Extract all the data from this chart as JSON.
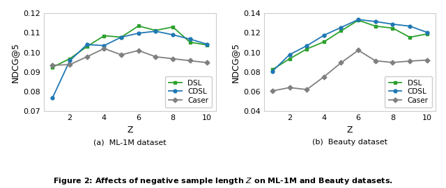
{
  "x": [
    1,
    2,
    3,
    4,
    5,
    6,
    7,
    8,
    9,
    10
  ],
  "ml1m": {
    "DSL": [
      0.0925,
      0.0968,
      0.103,
      0.1085,
      0.1078,
      0.1135,
      0.1112,
      0.113,
      0.1052,
      0.1038
    ],
    "CDSL": [
      0.077,
      0.0958,
      0.104,
      0.1035,
      0.1078,
      0.1098,
      0.1108,
      0.109,
      0.1068,
      0.1042
    ],
    "Caser": [
      0.0935,
      0.0938,
      0.0978,
      0.102,
      0.0988,
      0.101,
      0.0978,
      0.0968,
      0.0958,
      0.0948
    ]
  },
  "beauty": {
    "DSL": [
      0.0825,
      0.0935,
      0.1035,
      0.1108,
      0.122,
      0.1328,
      0.1268,
      0.1248,
      0.1155,
      0.1188
    ],
    "CDSL": [
      0.0808,
      0.0978,
      0.1068,
      0.1175,
      0.1255,
      0.1335,
      0.1315,
      0.1288,
      0.1268,
      0.1205
    ],
    "Caser": [
      0.0608,
      0.0642,
      0.0622,
      0.0752,
      0.0895,
      0.1022,
      0.0915,
      0.0898,
      0.0912,
      0.0922
    ]
  },
  "colors": {
    "DSL": "#2ca02c",
    "CDSL": "#1f77b4",
    "Caser": "#7f7f7f"
  },
  "markers": {
    "DSL": "s",
    "CDSL": "o",
    "Caser": "D"
  },
  "ylabel": "NDCG@5",
  "xlabel": "Z",
  "ylim_ml1m": [
    0.07,
    0.12
  ],
  "ylim_beauty": [
    0.04,
    0.14
  ],
  "yticks_ml1m": [
    0.07,
    0.08,
    0.09,
    0.1,
    0.11,
    0.12
  ],
  "yticks_beauty": [
    0.04,
    0.06,
    0.08,
    0.1,
    0.12,
    0.14
  ],
  "xticks": [
    2,
    4,
    6,
    8,
    10
  ],
  "subtitle_ml1m": "(a)  ML-1M dataset",
  "subtitle_beauty": "(b)  Beauty dataset",
  "figure_caption": "Figure 2: Affects of negative sample length $Z$ on ML-1M and Beauty datasets.",
  "legend_labels": [
    "DSL",
    "CDSL",
    "Caser"
  ]
}
